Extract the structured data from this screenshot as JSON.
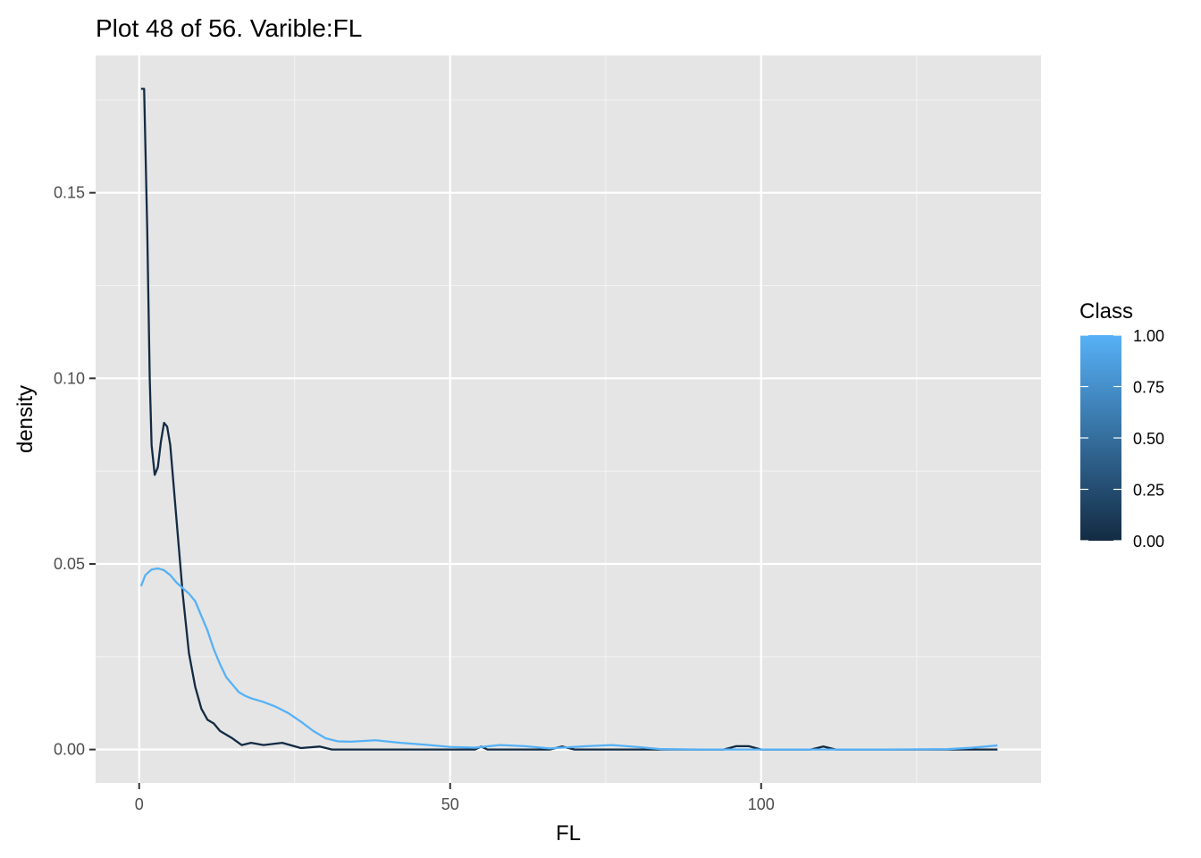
{
  "chart_data": {
    "type": "line",
    "title": "Plot 48 of 56. Varible:FL",
    "xlabel": "FL",
    "ylabel": "density",
    "xlim": [
      -7,
      145
    ],
    "ylim": [
      -0.009,
      0.187
    ],
    "x_ticks": [
      0,
      50,
      100
    ],
    "x_tick_labels": [
      "0",
      "50",
      "100"
    ],
    "y_ticks": [
      0.0,
      0.05,
      0.1,
      0.15
    ],
    "y_tick_labels": [
      "0.00",
      "0.05",
      "0.10",
      "0.15"
    ],
    "grid": true,
    "legend": {
      "title": "Class",
      "type": "colorbar",
      "placement": "right",
      "ticks": [
        0.0,
        0.25,
        0.5,
        0.75,
        1.0
      ],
      "labels": [
        "0.00",
        "0.25",
        "0.50",
        "0.75",
        "1.00"
      ],
      "low_color": "#132B43",
      "high_color": "#56B1F7"
    },
    "series": [
      {
        "color": "#132B43",
        "class_value": 0,
        "points": [
          [
            0.3,
            0.178
          ],
          [
            0.8,
            0.178
          ],
          [
            1.3,
            0.14
          ],
          [
            1.7,
            0.1
          ],
          [
            2.0,
            0.082
          ],
          [
            2.5,
            0.074
          ],
          [
            3.0,
            0.076
          ],
          [
            3.5,
            0.083
          ],
          [
            4.0,
            0.088
          ],
          [
            4.5,
            0.087
          ],
          [
            5.0,
            0.082
          ],
          [
            6.0,
            0.062
          ],
          [
            7.0,
            0.042
          ],
          [
            8.0,
            0.026
          ],
          [
            9.0,
            0.017
          ],
          [
            10.0,
            0.011
          ],
          [
            11.0,
            0.008
          ],
          [
            12.0,
            0.007
          ],
          [
            13.0,
            0.005
          ],
          [
            14.0,
            0.004
          ],
          [
            15.0,
            0.003
          ],
          [
            16.5,
            0.0012
          ],
          [
            18.0,
            0.0018
          ],
          [
            20.0,
            0.0012
          ],
          [
            23.0,
            0.0018
          ],
          [
            26.0,
            0.0004
          ],
          [
            29.0,
            0.0008
          ],
          [
            31.0,
            0.0
          ],
          [
            40.0,
            0.0
          ],
          [
            50.0,
            0.0
          ],
          [
            54.0,
            0.0
          ],
          [
            55.0,
            0.0008
          ],
          [
            56.0,
            0.0
          ],
          [
            66.0,
            0.0
          ],
          [
            68.0,
            0.0008
          ],
          [
            70.0,
            0.0
          ],
          [
            80.0,
            0.0
          ],
          [
            94.0,
            0.0
          ],
          [
            96.0,
            0.0009
          ],
          [
            98.0,
            0.0009
          ],
          [
            100.0,
            0.0
          ],
          [
            108.0,
            0.0
          ],
          [
            110.0,
            0.0008
          ],
          [
            112.0,
            0.0
          ],
          [
            138.0,
            0.0
          ]
        ]
      },
      {
        "color": "#56B1F7",
        "class_value": 1,
        "points": [
          [
            0.3,
            0.044
          ],
          [
            1.0,
            0.047
          ],
          [
            2.0,
            0.0485
          ],
          [
            3.0,
            0.0488
          ],
          [
            4.0,
            0.0483
          ],
          [
            5.0,
            0.047
          ],
          [
            6.0,
            0.045
          ],
          [
            7.0,
            0.0435
          ],
          [
            8.0,
            0.042
          ],
          [
            9.0,
            0.04
          ],
          [
            10.0,
            0.036
          ],
          [
            11.0,
            0.032
          ],
          [
            12.0,
            0.027
          ],
          [
            13.0,
            0.023
          ],
          [
            14.0,
            0.0195
          ],
          [
            15.0,
            0.0175
          ],
          [
            16.0,
            0.0155
          ],
          [
            17.0,
            0.0145
          ],
          [
            18.0,
            0.0138
          ],
          [
            20.0,
            0.0128
          ],
          [
            22.0,
            0.0115
          ],
          [
            24.0,
            0.0098
          ],
          [
            26.0,
            0.0075
          ],
          [
            28.0,
            0.005
          ],
          [
            30.0,
            0.003
          ],
          [
            32.0,
            0.0022
          ],
          [
            34.0,
            0.0021
          ],
          [
            38.0,
            0.0025
          ],
          [
            42.0,
            0.0018
          ],
          [
            46.0,
            0.0013
          ],
          [
            50.0,
            0.0007
          ],
          [
            54.0,
            0.0005
          ],
          [
            58.0,
            0.0012
          ],
          [
            62.0,
            0.0009
          ],
          [
            66.0,
            0.0003
          ],
          [
            72.0,
            0.0009
          ],
          [
            76.0,
            0.0012
          ],
          [
            80.0,
            0.0007
          ],
          [
            84.0,
            0.0001
          ],
          [
            90.0,
            0.0
          ],
          [
            100.0,
            0.0
          ],
          [
            110.0,
            0.0
          ],
          [
            120.0,
            0.0
          ],
          [
            130.0,
            0.0001
          ],
          [
            134.0,
            0.0005
          ],
          [
            138.0,
            0.0011
          ]
        ]
      }
    ]
  }
}
